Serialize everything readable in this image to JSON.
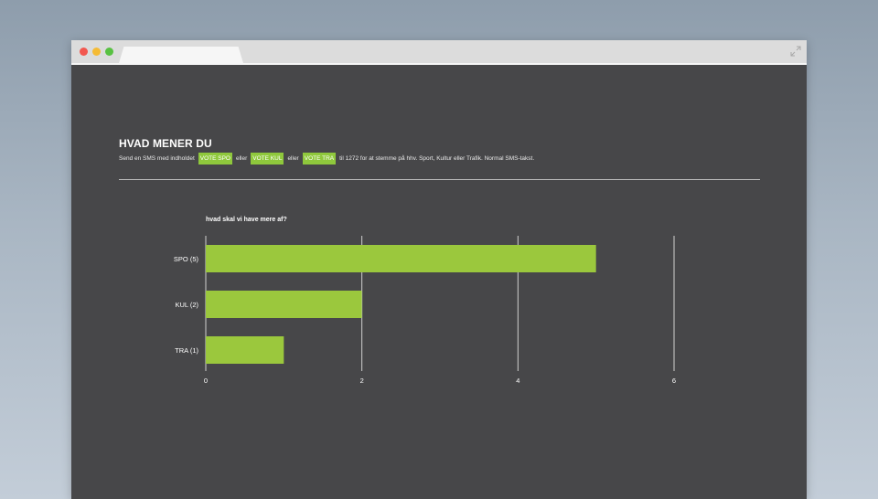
{
  "page": {
    "heading": "HVAD MENER DU",
    "instructions": {
      "prefix": "Send en SMS med indholdet",
      "code1": "VOTE SPO",
      "sep1": "eller",
      "code2": "VOTE KUL",
      "sep2": "eller",
      "code3": "VOTE TRA",
      "suffix": "til 1272 for at stemme på hhv. Sport, Kultur eller Trafik. Normal SMS-takst."
    }
  },
  "colors": {
    "background": "#474749",
    "bar": "#9bc83d",
    "code_badge": "#8fc83c",
    "text": "#ffffff",
    "gridline": "#d0d0d0"
  },
  "chart_data": {
    "type": "bar",
    "orientation": "horizontal",
    "title": "hvad skal vi have mere af?",
    "categories": [
      "SPO (5)",
      "KUL (2)",
      "TRA (1)"
    ],
    "values": [
      5,
      2,
      1
    ],
    "xlim": [
      0,
      6
    ],
    "xticks": [
      0,
      2,
      4,
      6
    ],
    "grid": true,
    "legend": "none"
  }
}
